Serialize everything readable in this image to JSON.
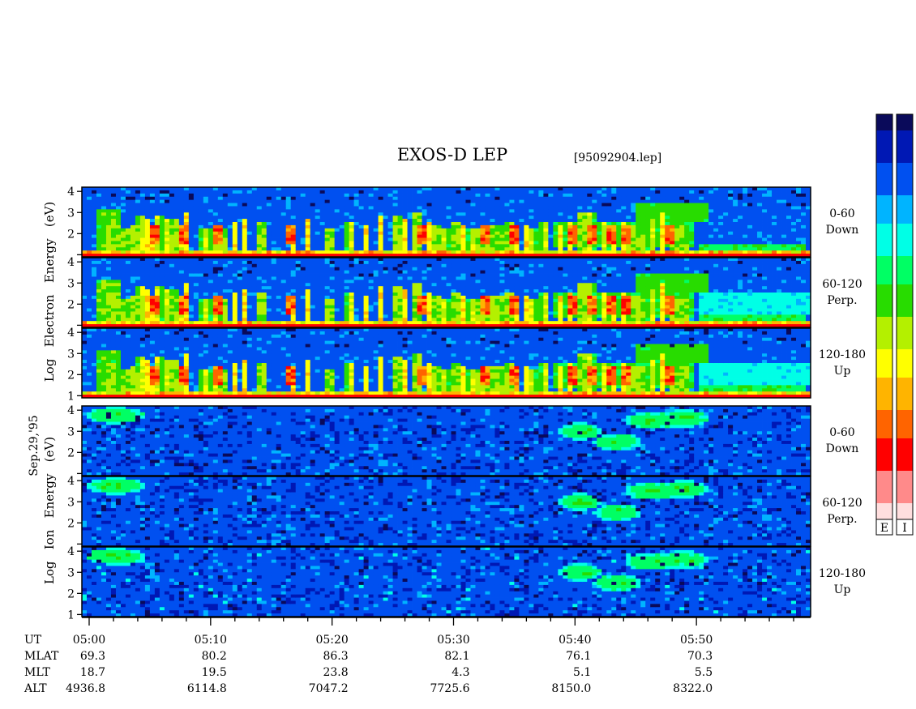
{
  "header": {
    "title": "EXOS-D LEP",
    "file": "[95092904.lep]"
  },
  "left_labels": {
    "date": "Sep.29,'95",
    "electron_axis": "Log   Electron   Energy   (eV)",
    "ion_axis": "Log   Ion   Energy   (eV)"
  },
  "panels": [
    {
      "species": "electron",
      "label_line1": "0-60",
      "label_line2": "Down",
      "y_ticks": [
        "1",
        "2",
        "3",
        "4"
      ],
      "variant": 0
    },
    {
      "species": "electron",
      "label_line1": "60-120",
      "label_line2": "Perp.",
      "y_ticks": [
        "1",
        "2",
        "3",
        "4"
      ],
      "variant": 1
    },
    {
      "species": "electron",
      "label_line1": "120-180",
      "label_line2": "Up",
      "y_ticks": [
        "1",
        "2",
        "3",
        "4"
      ],
      "variant": 2
    },
    {
      "species": "ion",
      "label_line1": "0-60",
      "label_line2": "Down",
      "y_ticks": [
        "1",
        "2",
        "3",
        "4"
      ],
      "variant": 0
    },
    {
      "species": "ion",
      "label_line1": "60-120",
      "label_line2": "Perp.",
      "y_ticks": [
        "1",
        "2",
        "3",
        "4"
      ],
      "variant": 1
    },
    {
      "species": "ion",
      "label_line1": "120-180",
      "label_line2": "Up",
      "y_ticks": [
        "1",
        "2",
        "3",
        "4"
      ],
      "variant": 2
    }
  ],
  "colorbars": [
    {
      "label": "E"
    },
    {
      "label": "I"
    }
  ],
  "colormap": [
    "#0a0a5a",
    "#0018b4",
    "#0050f0",
    "#00b4ff",
    "#00ffe6",
    "#00ff64",
    "#28dc00",
    "#b4f000",
    "#ffff00",
    "#ffb400",
    "#ff6400",
    "#ff0000",
    "#ff8a8a",
    "#ffdede"
  ],
  "chart_data": {
    "type": "heatmap",
    "title": "EXOS-D LEP",
    "x_axis": {
      "ylabel_rows": [
        "UT",
        "MLAT",
        "MLT",
        "ALT"
      ],
      "ticks": [
        {
          "minute": 0,
          "ut": "05:00",
          "mlat": "69.3",
          "mlt": "18.7",
          "alt": "4936.8"
        },
        {
          "minute": 10,
          "ut": "05:10",
          "mlat": "80.2",
          "mlt": "19.5",
          "alt": "6114.8"
        },
        {
          "minute": 20,
          "ut": "05:20",
          "mlat": "86.3",
          "mlt": "23.8",
          "alt": "7047.2"
        },
        {
          "minute": 30,
          "ut": "05:30",
          "mlat": "82.1",
          "mlt": "4.3",
          "alt": "7725.6"
        },
        {
          "minute": 40,
          "ut": "05:40",
          "mlat": "76.1",
          "mlt": "5.1",
          "alt": "8150.0"
        },
        {
          "minute": 50,
          "ut": "05:50",
          "mlat": "70.3",
          "mlt": "5.5",
          "alt": "8322.0"
        }
      ],
      "range_minutes": [
        -0.6,
        59.4
      ]
    },
    "y_axis": {
      "label": "Log Energy (eV)",
      "range": [
        0.9,
        4.2
      ]
    },
    "electron_features": {
      "bursts_minute": [
        1.8,
        3.0,
        3.8,
        4.3,
        4.8,
        5.2,
        5.7,
        6.3,
        7.0,
        7.5,
        8.0,
        9.5,
        10.3,
        11.0,
        12.0,
        12.8,
        14.2,
        16.8,
        18.0,
        19.8,
        21.5,
        22.8,
        24.0,
        25.4,
        26.0,
        27.0,
        28.0,
        28.6,
        29.3,
        30.2,
        30.8,
        31.5,
        32.2,
        33.0,
        33.8,
        34.6,
        35.2,
        36.0,
        36.5,
        37.5,
        38.8,
        39.6,
        40.6,
        41.3,
        42.5,
        43.2,
        44.0,
        44.6,
        45.4,
        46.3,
        47.2,
        48.2,
        49.0
      ],
      "hot_minutes": [
        5.5,
        7.8,
        10.5,
        16.6,
        27.3,
        32.5,
        34.9,
        39.8,
        41.5,
        43.0,
        44.2,
        47.9
      ]
    },
    "ion_features": {
      "blobs": [
        {
          "minute": 2.2,
          "log_e": 3.75,
          "width": 2.5
        },
        {
          "minute": 40.5,
          "log_e": 3.0,
          "width": 1.8
        },
        {
          "minute": 43.5,
          "log_e": 2.5,
          "width": 2.0
        },
        {
          "minute": 46.5,
          "log_e": 3.5,
          "width": 2.5
        },
        {
          "minute": 49.0,
          "log_e": 3.6,
          "width": 2.0
        }
      ]
    }
  }
}
